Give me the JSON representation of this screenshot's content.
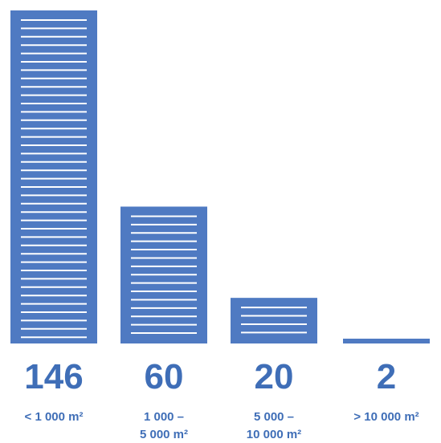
{
  "colors": {
    "bar": "#4f7ac2",
    "stripe": "#ffffff",
    "value_text": "#3f6eb7",
    "category_text": "#3f6eb7"
  },
  "chart_data": {
    "type": "bar",
    "title": "",
    "xlabel": "",
    "ylabel": "",
    "categories": [
      {
        "lines": [
          "< 1 000 m²"
        ]
      },
      {
        "lines": [
          "1 000 –",
          "5 000 m²"
        ]
      },
      {
        "lines": [
          "5 000 –",
          "10 000 m²"
        ]
      },
      {
        "lines": [
          "> 10 000 m²"
        ]
      }
    ],
    "values": [
      146,
      60,
      20,
      2
    ],
    "value_labels": [
      "146",
      "60",
      "20",
      "2"
    ],
    "ylim": [
      0,
      146
    ],
    "grid": false,
    "legend": "none"
  }
}
